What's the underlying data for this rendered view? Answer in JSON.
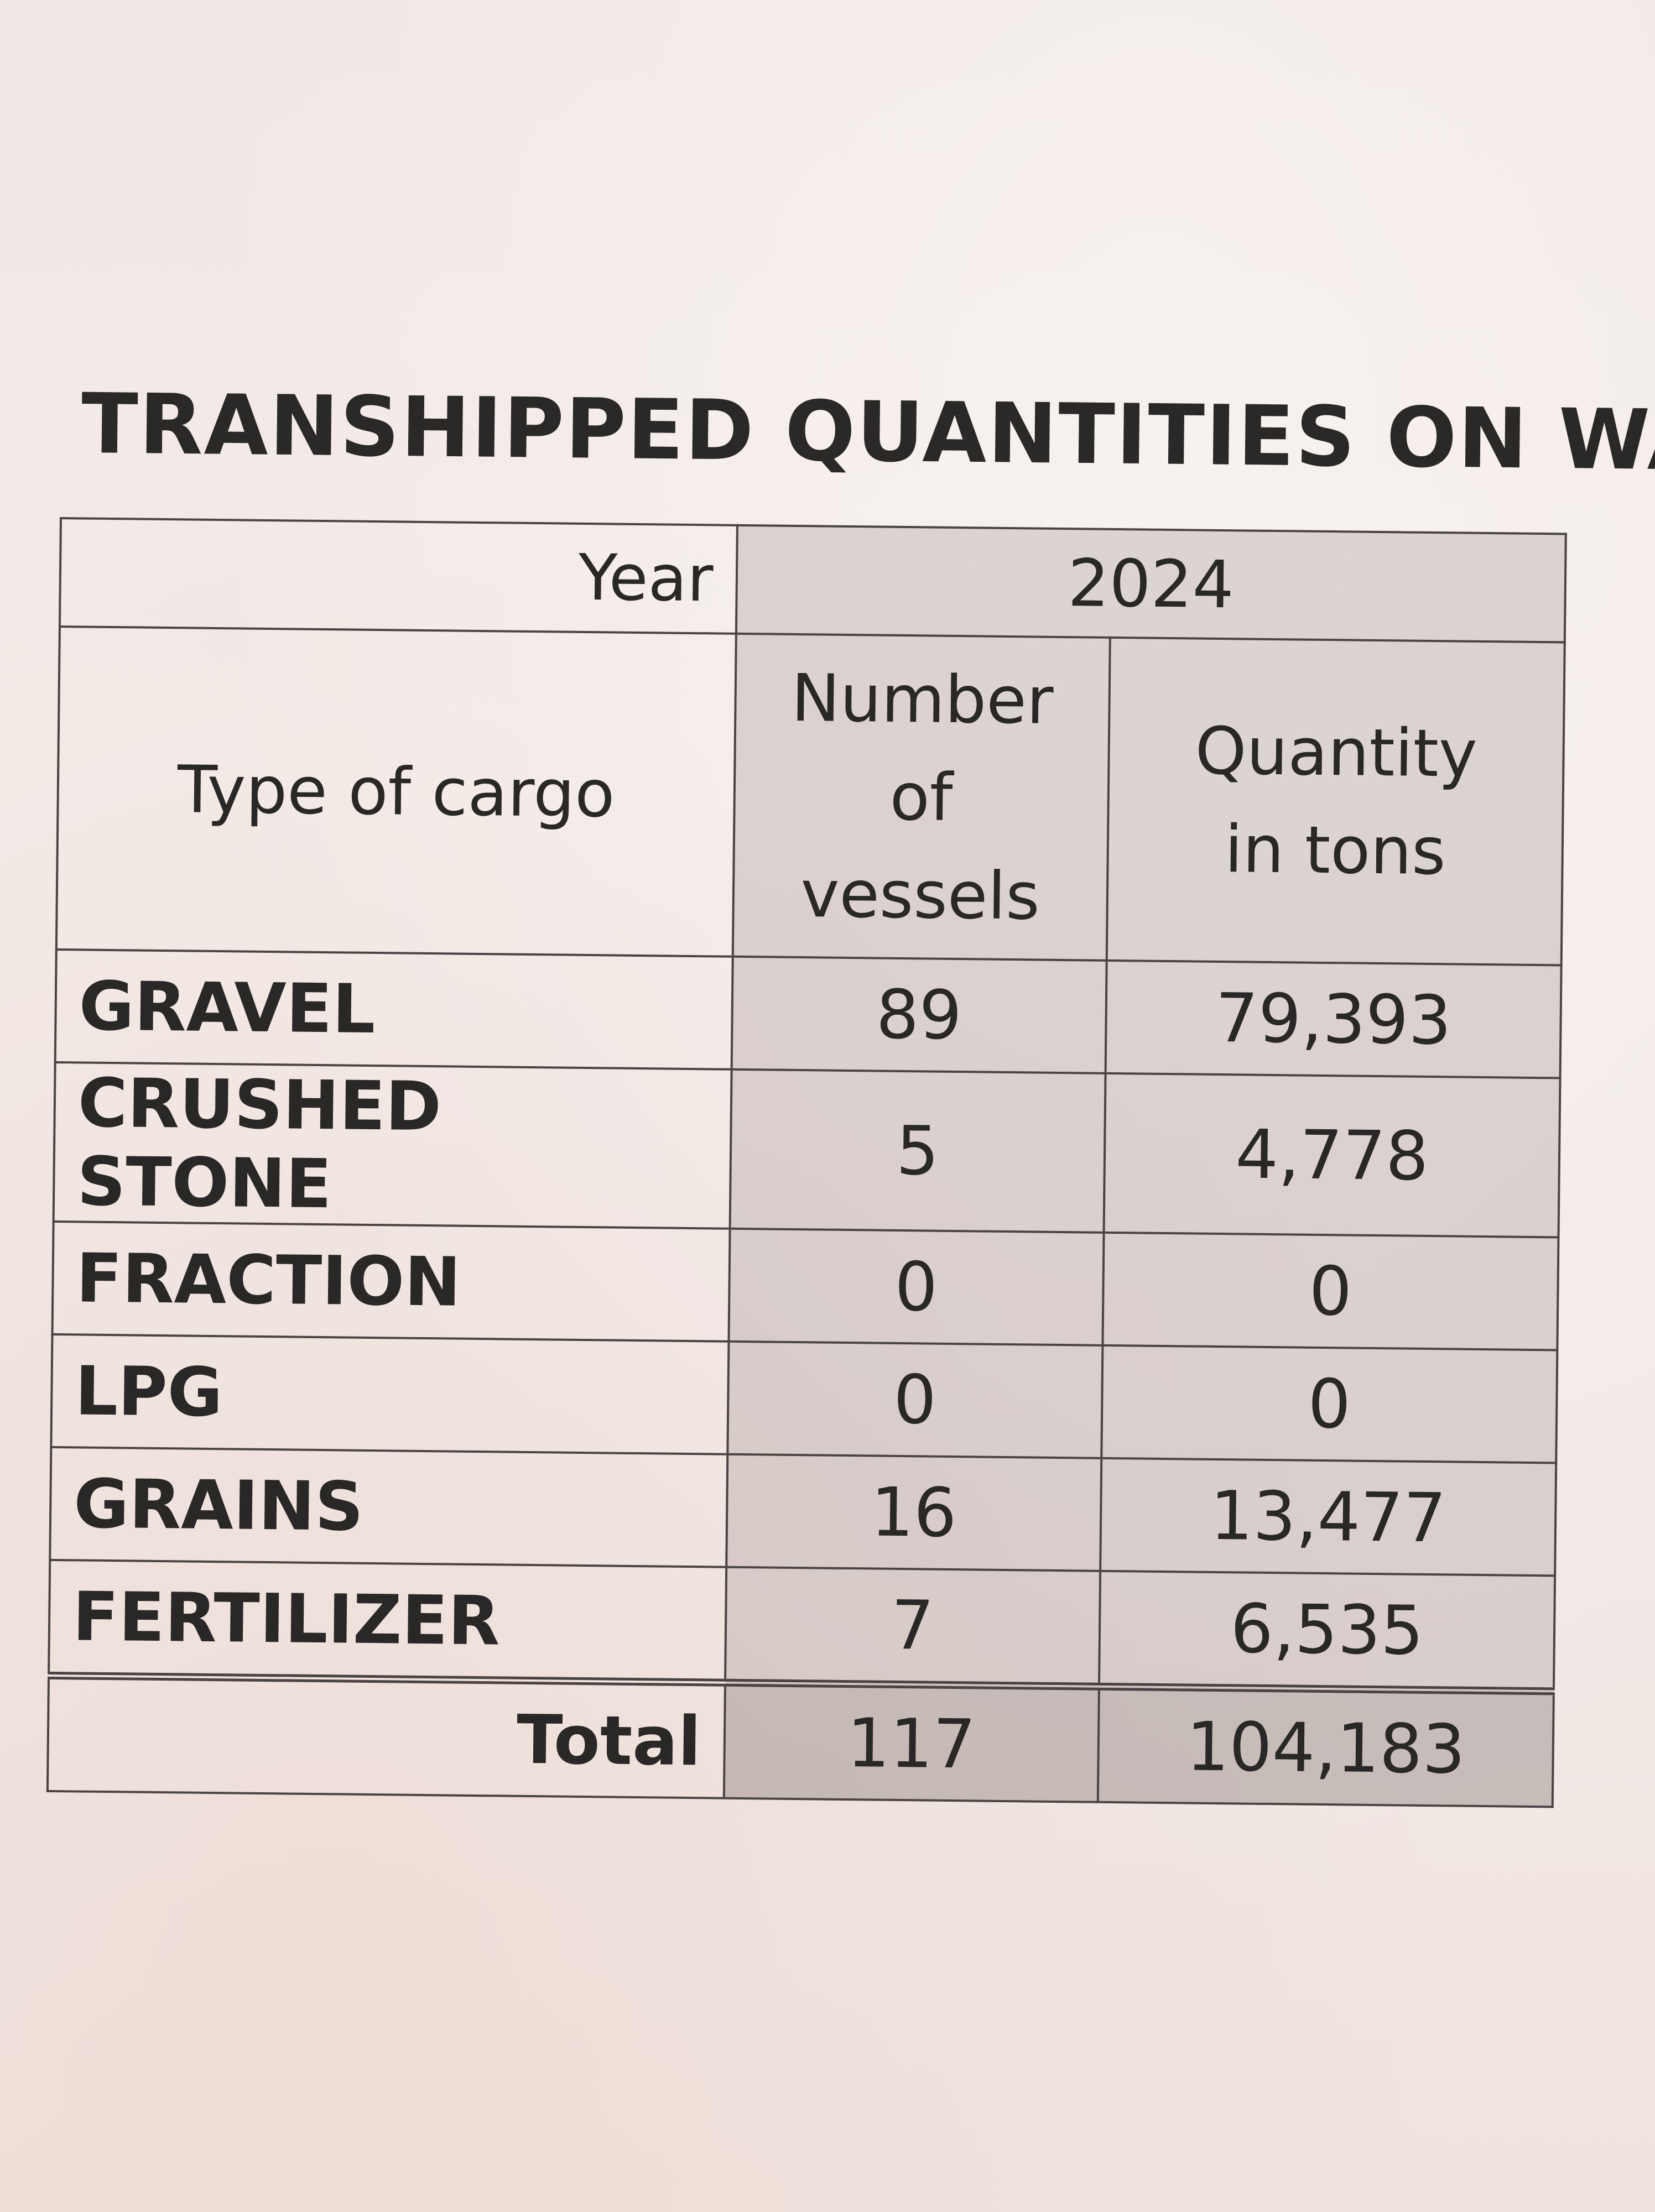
{
  "title": "TRANSHIPPED QUANTITIES ON WATER",
  "table": {
    "year_label": "Year",
    "year_value": "2024",
    "headers": {
      "cargo": "Type of cargo",
      "vessels": [
        "Number",
        "of",
        "vessels"
      ],
      "quantity": [
        "Quantity",
        "in tons"
      ]
    },
    "rows": [
      {
        "cargo": "GRAVEL",
        "vessels": "89",
        "quantity": "79,393"
      },
      {
        "cargo": "CRUSHED STONE",
        "vessels": "5",
        "quantity": "4,778"
      },
      {
        "cargo": "FRACTION",
        "vessels": "0",
        "quantity": "0"
      },
      {
        "cargo": "LPG",
        "vessels": "0",
        "quantity": "0"
      },
      {
        "cargo": "GRAINS",
        "vessels": "16",
        "quantity": "13,477"
      },
      {
        "cargo": "FERTILIZER",
        "vessels": "7",
        "quantity": "6,535"
      }
    ],
    "total": {
      "label": "Total",
      "vessels": "117",
      "quantity": "104,183"
    }
  }
}
